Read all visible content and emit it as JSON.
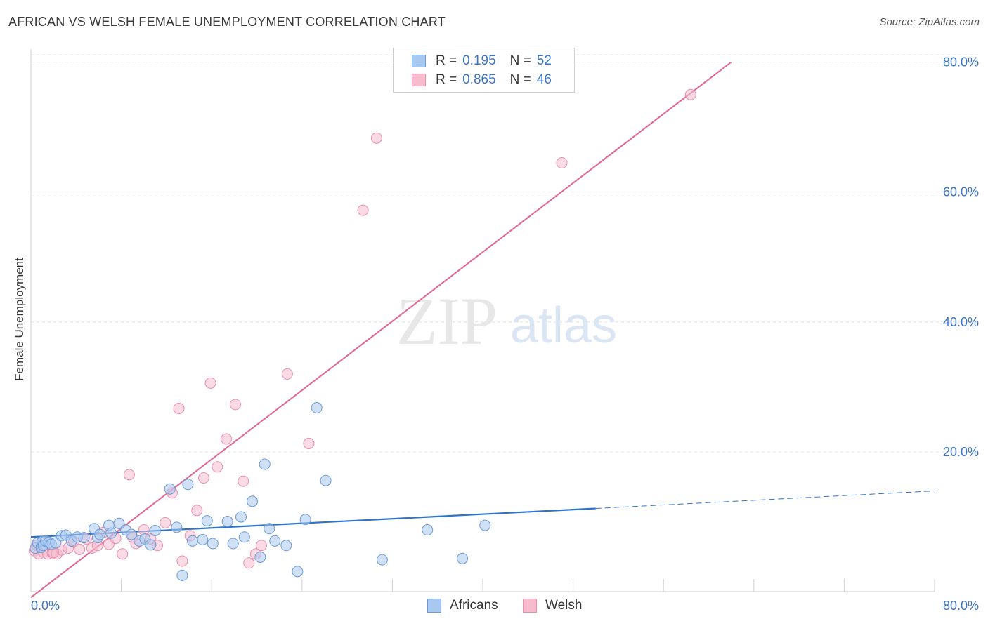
{
  "title": "AFRICAN VS WELSH FEMALE UNEMPLOYMENT CORRELATION CHART",
  "source": "Source: ZipAtlas.com",
  "watermark": {
    "zip": "ZIP",
    "atlas": "atlas"
  },
  "legend": {
    "rows": [
      {
        "r_label": "R =",
        "r_value": "0.195",
        "n_label": "N =",
        "n_value": "52"
      },
      {
        "r_label": "R =",
        "r_value": "0.865",
        "n_label": "N =",
        "n_value": "46"
      }
    ]
  },
  "bottom_legend": {
    "africans": "Africans",
    "welsh": "Welsh"
  },
  "colors": {
    "africans_fill": "#a9c8ef",
    "africans_stroke": "#6b9bd8",
    "africans_line": "#2f74c9",
    "welsh_fill": "#f6bccd",
    "welsh_stroke": "#ea8fac",
    "welsh_line": "#e0668f",
    "grid": "#e2e2e2",
    "tick_label": "#3b74c4"
  },
  "chart_data": {
    "type": "scatter",
    "title": "AFRICAN VS WELSH FEMALE UNEMPLOYMENT CORRELATION CHART",
    "xlabel": "",
    "ylabel": "Female Unemployment",
    "xlim": [
      0,
      80
    ],
    "ylim": [
      -1.5,
      82
    ],
    "x_tick_labels": [
      "0.0%",
      "80.0%"
    ],
    "y_ticks": [
      20,
      40,
      60,
      80
    ],
    "y_tick_labels": [
      "20.0%",
      "40.0%",
      "60.0%",
      "80.0%"
    ],
    "series": [
      {
        "name": "Africans",
        "r": 0.195,
        "n": 52,
        "trend": {
          "x0": 0,
          "y0": 6.9,
          "x1": 50,
          "y1": 11.3,
          "dashed_to_x": 80,
          "dashed_to_y": 14.0
        },
        "points": [
          [
            0.4,
            5.2
          ],
          [
            0.6,
            6.0
          ],
          [
            0.9,
            5.3
          ],
          [
            1.0,
            6.2
          ],
          [
            1.1,
            5.6
          ],
          [
            1.3,
            6.3
          ],
          [
            1.6,
            6.1
          ],
          [
            1.8,
            5.8
          ],
          [
            2.2,
            6.0
          ],
          [
            2.7,
            7.1
          ],
          [
            3.1,
            7.2
          ],
          [
            3.6,
            6.3
          ],
          [
            4.1,
            6.9
          ],
          [
            4.7,
            6.8
          ],
          [
            5.6,
            8.2
          ],
          [
            5.9,
            6.8
          ],
          [
            6.1,
            7.3
          ],
          [
            6.9,
            8.7
          ],
          [
            7.1,
            7.5
          ],
          [
            7.8,
            9.0
          ],
          [
            8.4,
            8.0
          ],
          [
            8.9,
            7.3
          ],
          [
            9.6,
            6.3
          ],
          [
            10.1,
            6.6
          ],
          [
            10.6,
            5.7
          ],
          [
            11.0,
            7.9
          ],
          [
            12.3,
            14.3
          ],
          [
            12.9,
            8.4
          ],
          [
            13.4,
            1.0
          ],
          [
            13.9,
            15.0
          ],
          [
            14.3,
            6.3
          ],
          [
            15.2,
            6.5
          ],
          [
            15.6,
            9.4
          ],
          [
            16.1,
            5.9
          ],
          [
            17.4,
            9.3
          ],
          [
            17.9,
            5.9
          ],
          [
            18.6,
            10.0
          ],
          [
            18.9,
            6.9
          ],
          [
            19.6,
            12.4
          ],
          [
            20.3,
            3.8
          ],
          [
            20.7,
            18.1
          ],
          [
            21.1,
            8.2
          ],
          [
            21.6,
            6.3
          ],
          [
            22.6,
            5.6
          ],
          [
            23.6,
            1.6
          ],
          [
            24.3,
            9.6
          ],
          [
            25.3,
            26.8
          ],
          [
            26.1,
            15.6
          ],
          [
            31.1,
            3.4
          ],
          [
            35.1,
            8.0
          ],
          [
            38.2,
            3.6
          ],
          [
            40.2,
            8.7
          ]
        ]
      },
      {
        "name": "Welsh",
        "r": 0.865,
        "n": 46,
        "trend": {
          "x0": 0,
          "y0": -2.4,
          "x1": 62,
          "y1": 80.0
        },
        "points": [
          [
            0.3,
            4.8
          ],
          [
            0.5,
            5.6
          ],
          [
            0.7,
            4.3
          ],
          [
            1.1,
            4.6
          ],
          [
            1.5,
            4.3
          ],
          [
            1.9,
            4.5
          ],
          [
            2.3,
            4.3
          ],
          [
            2.7,
            4.9
          ],
          [
            3.3,
            5.2
          ],
          [
            3.8,
            6.2
          ],
          [
            4.3,
            5.0
          ],
          [
            4.9,
            6.6
          ],
          [
            5.4,
            5.2
          ],
          [
            5.9,
            5.6
          ],
          [
            6.4,
            7.6
          ],
          [
            6.9,
            5.8
          ],
          [
            7.5,
            6.7
          ],
          [
            8.1,
            4.3
          ],
          [
            8.7,
            16.5
          ],
          [
            9.3,
            5.9
          ],
          [
            10.0,
            8.0
          ],
          [
            10.6,
            6.6
          ],
          [
            11.2,
            5.6
          ],
          [
            11.9,
            9.1
          ],
          [
            12.5,
            13.7
          ],
          [
            13.1,
            26.7
          ],
          [
            13.4,
            3.2
          ],
          [
            14.1,
            7.1
          ],
          [
            14.7,
            11.0
          ],
          [
            15.3,
            16.0
          ],
          [
            15.9,
            30.6
          ],
          [
            16.5,
            17.7
          ],
          [
            17.3,
            22.0
          ],
          [
            18.1,
            27.3
          ],
          [
            18.8,
            15.5
          ],
          [
            19.3,
            2.9
          ],
          [
            19.9,
            4.3
          ],
          [
            20.4,
            5.6
          ],
          [
            22.7,
            32.0
          ],
          [
            24.6,
            21.3
          ],
          [
            29.4,
            57.2
          ],
          [
            30.6,
            68.3
          ],
          [
            47.0,
            64.5
          ],
          [
            58.4,
            75.0
          ],
          [
            2.0,
            4.5
          ],
          [
            9.0,
            6.9
          ]
        ]
      }
    ]
  }
}
